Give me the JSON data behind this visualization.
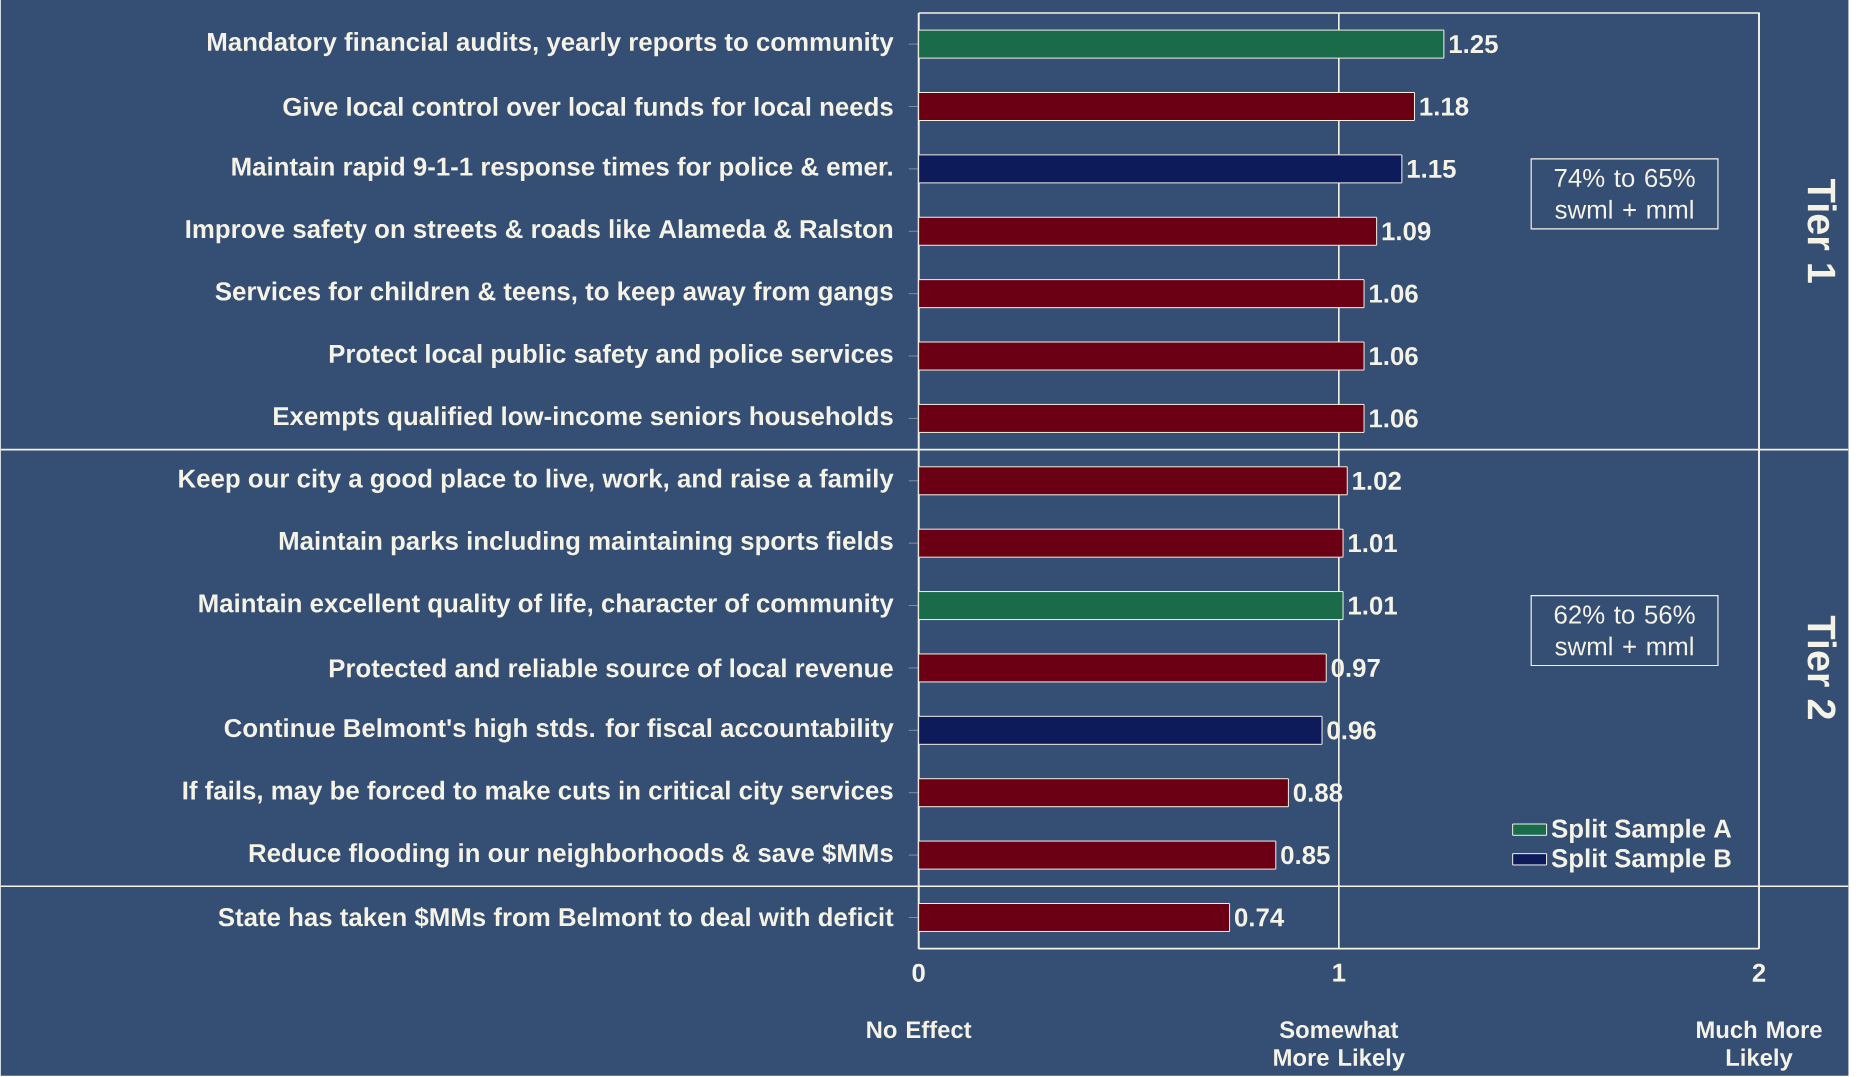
{
  "chart_data": {
    "type": "bar",
    "orientation": "horizontal",
    "categories": [
      "Mandatory financial audits, yearly reports to community",
      "Give local control over local funds for local needs",
      "Maintain rapid 9-1-1 response times for police & emer.",
      "Improve safety on streets & roads like Alameda & Ralston",
      "Services for children & teens, to keep away from gangs",
      "Protect local public safety and police services",
      "Exempts qualified low-income seniors households",
      "Keep our city a good place to live, work, and raise a family",
      "Maintain parks including maintaining sports fields",
      "Maintain excellent quality of life, character of community",
      "Protected and reliable source of local revenue",
      "Continue Belmont's high stds. for fiscal accountability",
      "If fails, may be forced to make cuts in critical city services",
      "Reduce flooding in our neighborhoods & save $MMs",
      "State has taken $MMs from Belmont to deal with deficit"
    ],
    "series": [
      {
        "color": "#6b0015",
        "values": [
          null,
          1.18,
          null,
          1.09,
          1.06,
          1.06,
          1.06,
          1.02,
          1.01,
          null,
          0.97,
          null,
          0.88,
          0.85,
          0.74
        ]
      },
      {
        "name": "Split Sample A",
        "color": "#1a6b4a",
        "values": [
          1.25,
          null,
          null,
          null,
          null,
          null,
          null,
          null,
          null,
          1.01,
          null,
          null,
          null,
          null,
          null
        ]
      },
      {
        "name": "Split Sample B",
        "color": "#0d1b5a",
        "values": [
          null,
          null,
          1.15,
          null,
          null,
          null,
          null,
          null,
          null,
          null,
          null,
          0.96,
          null,
          null,
          null
        ]
      }
    ],
    "xlim": [
      0,
      2
    ],
    "xticks": [
      0,
      1,
      2
    ],
    "grid": "x",
    "data_labels": true,
    "legend": "bottom right",
    "annotations": [
      "Tier 1",
      "74% to 65% swml + mml",
      "Tier 2",
      "62% to 56% swml + mml",
      "No Effect",
      "Somewhat More Likely",
      "Much More Likely"
    ]
  }
}
